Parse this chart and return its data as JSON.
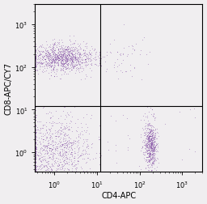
{
  "title": "",
  "xlabel": "CD4-APC",
  "ylabel": "CD8-APC/CY7",
  "xlim": [
    0.35,
    3000
  ],
  "ylim": [
    0.35,
    3000
  ],
  "x_gate": 12,
  "y_gate": 12,
  "background_color": "#f0eef0",
  "dot_color": "#7b3fa0",
  "dot_alpha": 0.45,
  "dot_size": 0.6,
  "quadrant_line_color": "#000000",
  "axis_label_fontsize": 7,
  "tick_fontsize": 6
}
